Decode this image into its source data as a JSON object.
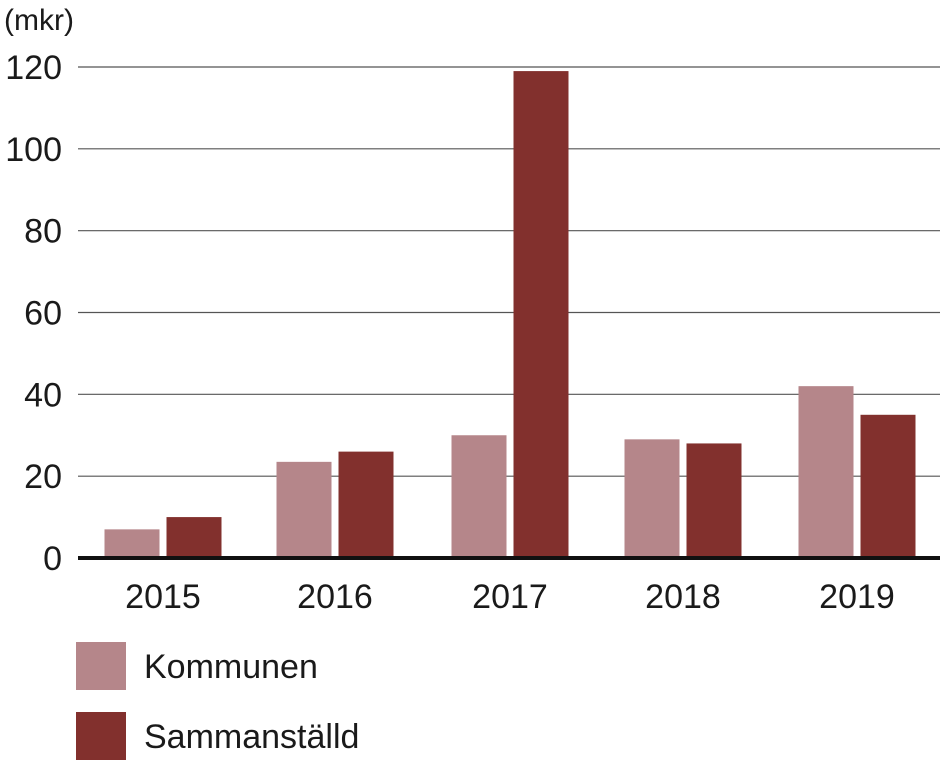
{
  "chart_data": {
    "type": "bar",
    "ylabel": "(mkr)",
    "categories": [
      "2015",
      "2016",
      "2017",
      "2018",
      "2019"
    ],
    "series": [
      {
        "name": "Kommunen",
        "color": "#b5868a",
        "values": [
          7,
          23.5,
          30,
          29,
          42
        ]
      },
      {
        "name": "Sammanställd",
        "color": "#82302d",
        "values": [
          10,
          26,
          119,
          28,
          35
        ]
      }
    ],
    "ylim": [
      0,
      120
    ],
    "yticks": [
      "0",
      "20",
      "40",
      "60",
      "80",
      "100",
      "120"
    ],
    "grid": true,
    "legend_placement": "bottom-left"
  }
}
